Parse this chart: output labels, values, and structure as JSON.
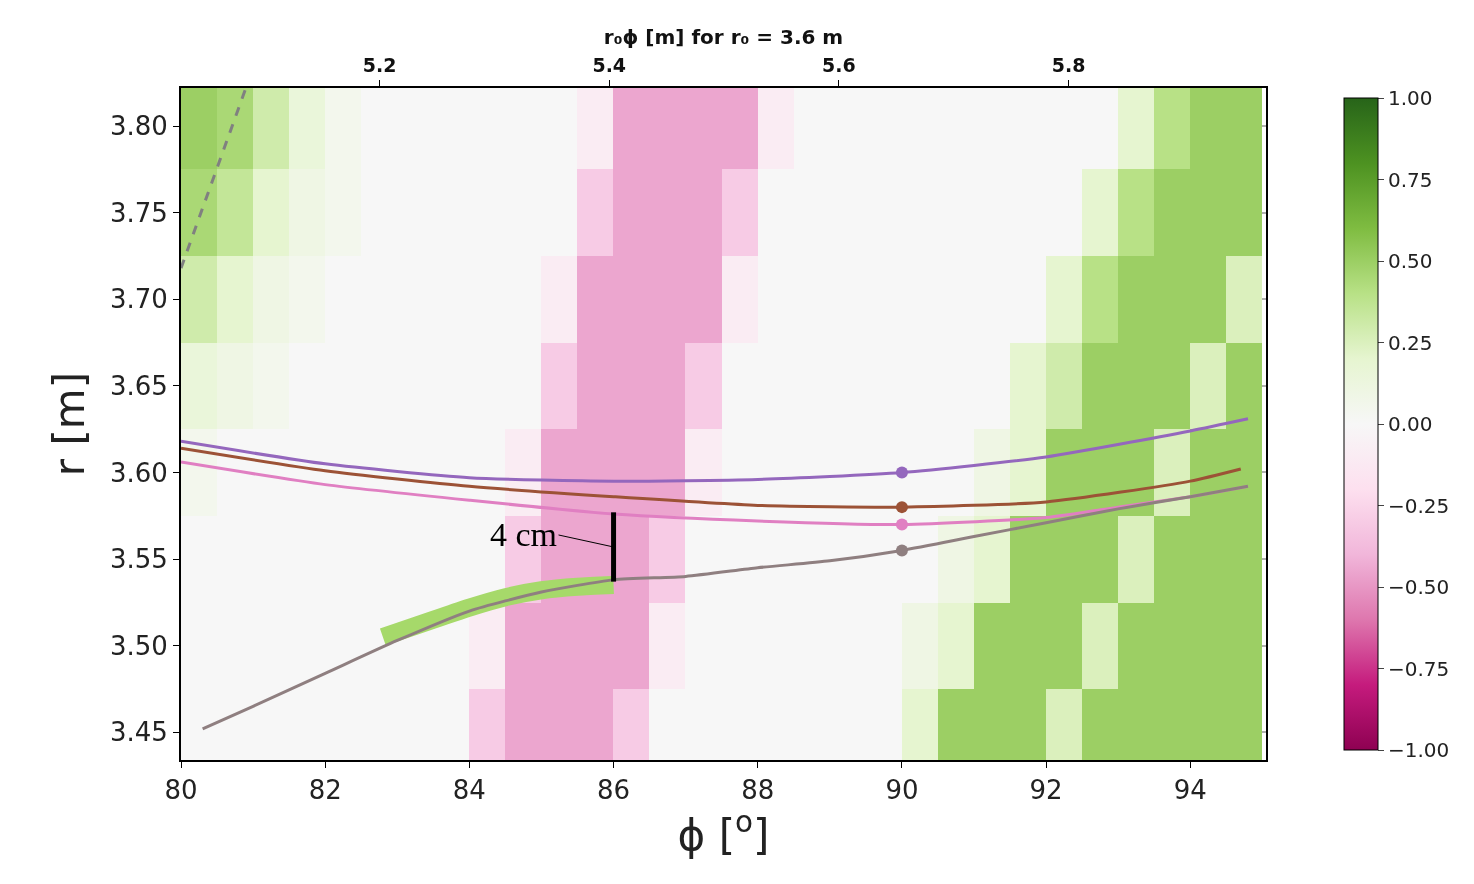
{
  "chart_data": {
    "type": "heatmap",
    "x": [
      80.25,
      80.75,
      81.25,
      81.75,
      82.25,
      82.75,
      83.25,
      83.75,
      84.25,
      84.75,
      85.25,
      85.75,
      86.25,
      86.75,
      87.25,
      87.75,
      88.25,
      88.75,
      89.25,
      89.75,
      90.25,
      90.75,
      91.25,
      91.75,
      92.25,
      92.75,
      93.25,
      93.75,
      94.25,
      94.75
    ],
    "cells": [
      [
        0.5,
        0.45,
        0.3,
        0.15,
        0.05,
        0,
        0,
        0,
        0,
        0,
        0,
        -0.1,
        -0.45,
        -0.45,
        -0.45,
        -0.45,
        -0.1,
        0,
        0,
        0,
        0,
        0,
        0,
        0,
        0,
        0,
        0.2,
        0.4,
        0.5,
        0.5
      ],
      [
        0.45,
        0.35,
        0.2,
        0.1,
        0.05,
        0,
        0,
        0,
        0,
        0,
        0,
        -0.3,
        -0.45,
        -0.45,
        -0.45,
        -0.3,
        0,
        0,
        0,
        0,
        0,
        0,
        0,
        0,
        0,
        0.2,
        0.4,
        0.5,
        0.5,
        0.5
      ],
      [
        0.3,
        0.2,
        0.1,
        0.05,
        0,
        0,
        0,
        0,
        0,
        0,
        -0.1,
        -0.45,
        -0.45,
        -0.45,
        -0.45,
        -0.1,
        0,
        0,
        0,
        0,
        0,
        0,
        0,
        0,
        0.2,
        0.4,
        0.5,
        0.5,
        0.5,
        0.25
      ],
      [
        0.15,
        0.1,
        0.05,
        0,
        0,
        0,
        0,
        0,
        0,
        0,
        -0.3,
        -0.45,
        -0.45,
        -0.45,
        -0.3,
        0,
        0,
        0,
        0,
        0,
        0,
        0,
        0,
        0.2,
        0.3,
        0.5,
        0.5,
        0.5,
        0.25,
        0.5
      ],
      [
        0.05,
        0,
        0,
        0,
        0,
        0,
        0,
        0,
        0,
        -0.1,
        -0.45,
        -0.45,
        -0.45,
        -0.45,
        -0.1,
        0,
        0,
        0,
        0,
        0,
        0,
        0,
        0.1,
        0.2,
        0.5,
        0.5,
        0.5,
        0.25,
        0.5,
        0.5
      ],
      [
        0,
        0,
        0,
        0,
        0,
        0,
        0,
        0,
        0,
        -0.3,
        -0.45,
        -0.45,
        -0.45,
        -0.3,
        0,
        0,
        0,
        0,
        0,
        0,
        0,
        0.1,
        0.2,
        0.5,
        0.5,
        0.5,
        0.25,
        0.5,
        0.5,
        0.5
      ],
      [
        0,
        0,
        0,
        0,
        0,
        0,
        0,
        0,
        -0.1,
        -0.45,
        -0.45,
        -0.45,
        -0.45,
        -0.1,
        0,
        0,
        0,
        0,
        0,
        0,
        0.1,
        0.2,
        0.5,
        0.5,
        0.5,
        0.25,
        0.5,
        0.5,
        0.5,
        0.5
      ],
      [
        0,
        0,
        0,
        0,
        0,
        0,
        0,
        0,
        -0.3,
        -0.45,
        -0.45,
        -0.45,
        -0.3,
        0,
        0,
        0,
        0,
        0,
        0,
        0,
        0.2,
        0.5,
        0.5,
        0.5,
        0.25,
        0.5,
        0.5,
        0.5,
        0.5,
        0.5
      ]
    ],
    "x2label": "r₀ϕ [m] for r₀ = 3.6 m",
    "xlabel": "ϕ [$^{o}$]",
    "ylabel": "r [m]",
    "xlim": [
      80,
      95.05
    ],
    "xticks": [
      80,
      82,
      84,
      86,
      88,
      90,
      92,
      94
    ],
    "x2lim": [
      5.027,
      5.972
    ],
    "x2ticks": [
      5.2,
      5.4,
      5.6,
      5.8
    ],
    "ylim": [
      3.434,
      3.822
    ],
    "yticks": [
      {
        "value": 3.45,
        "label": "3.45"
      },
      {
        "value": 3.5,
        "label": "3.50"
      },
      {
        "value": 3.55,
        "label": "3.55"
      },
      {
        "value": 3.6,
        "label": "3.60"
      },
      {
        "value": 3.65,
        "label": "3.65"
      },
      {
        "value": 3.7,
        "label": "3.70"
      },
      {
        "value": 3.75,
        "label": "3.75"
      },
      {
        "value": 3.8,
        "label": "3.80"
      }
    ],
    "clim": [
      -1,
      1
    ],
    "cticks": [
      {
        "value": -1,
        "label": "−1.00"
      },
      {
        "value": -0.75,
        "label": "−0.75"
      },
      {
        "value": -0.5,
        "label": "−0.50"
      },
      {
        "value": -0.25,
        "label": "−0.25"
      },
      {
        "value": 0,
        "label": "0.00"
      },
      {
        "value": 0.25,
        "label": "0.25"
      },
      {
        "value": 0.5,
        "label": "0.50"
      },
      {
        "value": 0.75,
        "label": "0.75"
      },
      {
        "value": 1,
        "label": "1.00"
      }
    ],
    "grid": true,
    "annotations": [
      {
        "text": "4 cm",
        "x": 86,
        "y": 3.557
      }
    ],
    "series": [
      {
        "type": "line",
        "color": "#a6d96a",
        "x": [
          82.8,
          83.5,
          84,
          84.5,
          85,
          85.5,
          86
        ],
        "values": [
          3.505,
          3.515,
          3.522,
          3.528,
          3.532,
          3.534,
          3.535
        ],
        "marker": "none"
      },
      {
        "type": "line",
        "color": "#9467bd",
        "marker": "none",
        "x": [
          80,
          82,
          84,
          86,
          88,
          90,
          92,
          94,
          94.8
        ],
        "values": [
          3.618,
          3.605,
          3.597,
          3.595,
          3.596,
          3.6,
          3.609,
          3.624,
          3.631
        ]
      },
      {
        "type": "line",
        "color": "#9c5236",
        "marker": "none",
        "x": [
          80,
          82,
          84,
          86,
          88,
          90,
          92,
          94,
          94.7
        ],
        "values": [
          3.614,
          3.601,
          3.592,
          3.586,
          3.581,
          3.58,
          3.583,
          3.595,
          3.602
        ]
      },
      {
        "type": "line",
        "color": "#e07fc2",
        "marker": "none",
        "x": [
          80,
          82,
          84,
          86,
          88,
          90,
          92,
          93,
          94,
          94.8
        ],
        "values": [
          3.606,
          3.593,
          3.584,
          3.576,
          3.572,
          3.57,
          3.574,
          3.58,
          3.586,
          3.592
        ]
      },
      {
        "type": "line",
        "color": "#8f7f80",
        "marker": "none",
        "x": [
          80.3,
          81,
          82,
          83,
          84,
          85,
          86,
          87,
          88,
          89,
          90,
          91,
          92,
          93,
          94,
          94.8
        ],
        "values": [
          3.452,
          3.465,
          3.484,
          3.503,
          3.52,
          3.531,
          3.538,
          3.54,
          3.545,
          3.549,
          3.555,
          3.563,
          3.571,
          3.579,
          3.586,
          3.592
        ]
      },
      {
        "type": "line",
        "color": "#808080",
        "marker": "none",
        "line_style": "dashed",
        "x": [
          80,
          80.9
        ],
        "values": [
          3.718,
          3.822
        ]
      },
      {
        "type": "scatter",
        "color": "#9467bd",
        "marker": "circle",
        "x": [
          90
        ],
        "values": [
          3.6
        ]
      },
      {
        "type": "scatter",
        "color": "#9c5236",
        "marker": "circle",
        "x": [
          90
        ],
        "values": [
          3.58
        ]
      },
      {
        "type": "scatter",
        "color": "#e07fc2",
        "marker": "circle",
        "x": [
          90
        ],
        "values": [
          3.57
        ]
      },
      {
        "type": "scatter",
        "color": "#8f7f80",
        "marker": "circle",
        "x": [
          90
        ],
        "values": [
          3.555
        ]
      },
      {
        "type": "line",
        "color": "#000000",
        "marker": "none",
        "x": [
          86,
          86
        ],
        "values": [
          3.537,
          3.577
        ]
      }
    ]
  }
}
